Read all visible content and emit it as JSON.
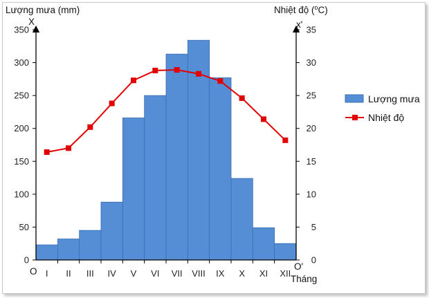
{
  "chart_data": {
    "type": "bar",
    "categories": [
      "I",
      "II",
      "III",
      "IV",
      "V",
      "VI",
      "VII",
      "VIII",
      "IX",
      "X",
      "XI",
      "XII"
    ],
    "series": [
      {
        "name": "Lượng mưa",
        "type": "bar",
        "axis": "left",
        "color": "#558ED5",
        "values": [
          23,
          32,
          45,
          88,
          216,
          250,
          313,
          334,
          277,
          124,
          49,
          25
        ]
      },
      {
        "name": "Nhiệt độ",
        "type": "line",
        "axis": "right",
        "color": "#E30000",
        "values": [
          16.4,
          17.0,
          20.2,
          23.8,
          27.3,
          28.8,
          28.9,
          28.3,
          27.2,
          24.6,
          21.4,
          18.2
        ]
      }
    ],
    "left_axis": {
      "label": "Lượng mưa (mm)",
      "letter": "X",
      "ylim": [
        0,
        350
      ],
      "ticks": [
        "0",
        "50",
        "100",
        "150",
        "200",
        "250",
        "300",
        "350"
      ]
    },
    "right_axis": {
      "label_main": "Nhiệt độ (",
      "label_sup": "o",
      "label_end": "C)",
      "letter": "x'",
      "ylim": [
        0,
        35
      ],
      "ticks": [
        "0",
        "5",
        "10",
        "15",
        "20",
        "25",
        "30",
        "35"
      ]
    },
    "origin_left": "O",
    "origin_right": "O'",
    "xlabel": "Tháng",
    "legend_position": "right",
    "grid": false
  }
}
